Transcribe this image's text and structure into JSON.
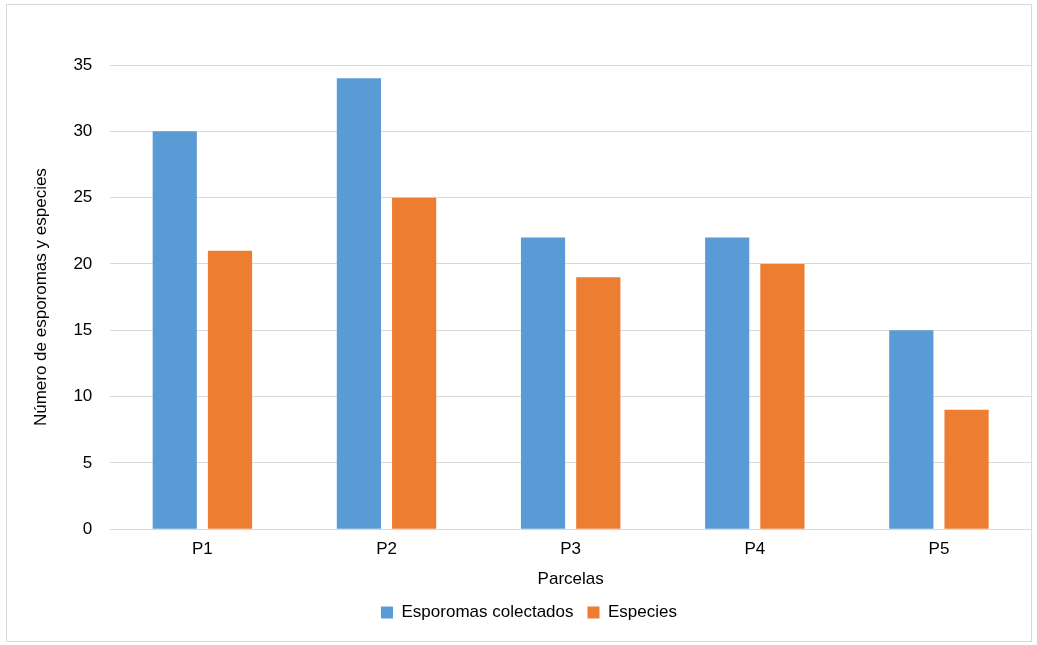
{
  "chart_data": {
    "type": "bar",
    "xlabel": "Parcelas",
    "ylabel": "Número de esporomas y especies",
    "categories": [
      "P1",
      "P2",
      "P3",
      "P4",
      "P5"
    ],
    "series": [
      {
        "name": "Esporomas colectados",
        "color": "#5b9bd5",
        "values": [
          30,
          34,
          22,
          22,
          15
        ]
      },
      {
        "name": "Especies",
        "color": "#ed7d31",
        "values": [
          21,
          25,
          19,
          20,
          9
        ]
      }
    ],
    "ylim": [
      0,
      35
    ],
    "yticks": [
      0,
      5,
      10,
      15,
      20,
      25,
      30,
      35
    ],
    "grid": "y",
    "legend": "bottom"
  }
}
